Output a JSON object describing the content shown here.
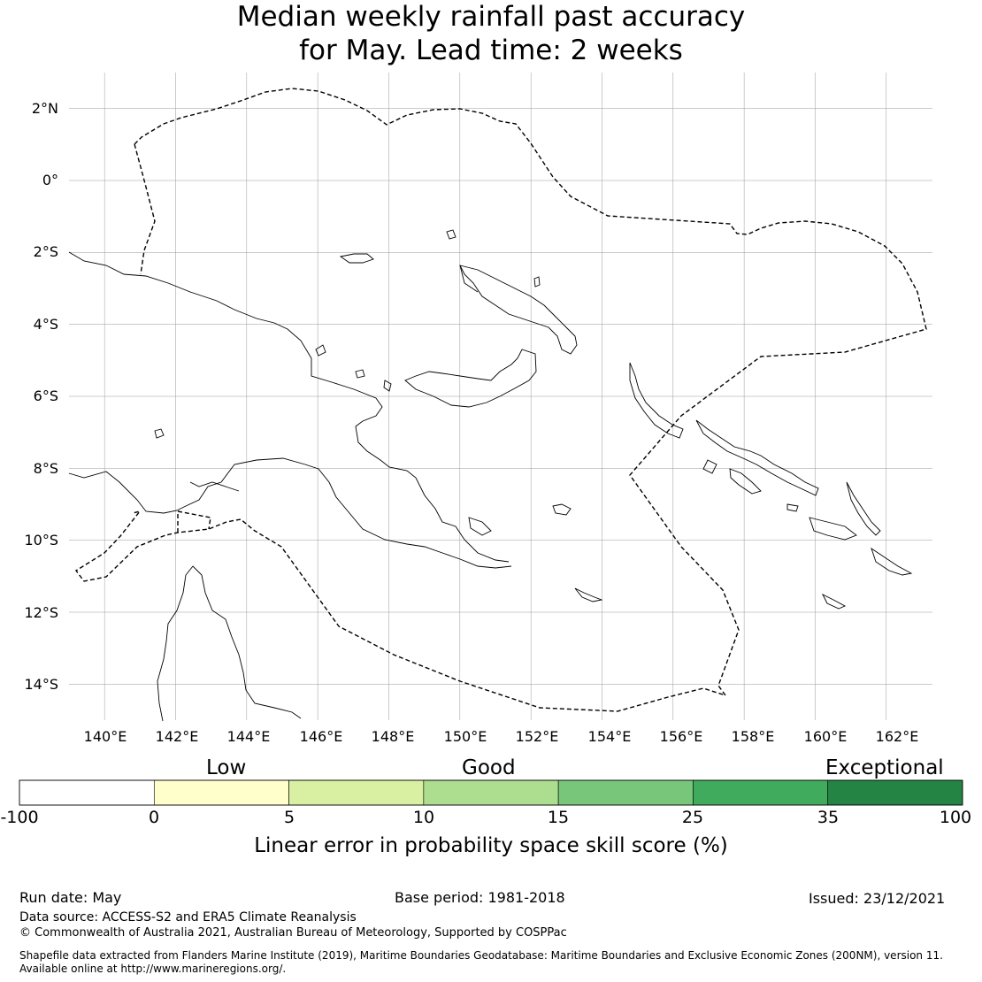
{
  "title": {
    "line1": "Median weekly rainfall past accuracy",
    "line2": "for May. Lead time: 2 weeks"
  },
  "map": {
    "lat_labels": [
      "2°N",
      "0°",
      "2°S",
      "4°S",
      "6°S",
      "8°S",
      "10°S",
      "12°S",
      "14°S"
    ],
    "lon_labels": [
      "140°E",
      "142°E",
      "144°E",
      "146°E",
      "148°E",
      "150°E",
      "152°E",
      "154°E",
      "156°E",
      "158°E",
      "160°E",
      "162°E"
    ],
    "extent": {
      "lon_min": 139,
      "lon_max": 163.3,
      "lat_min": -15,
      "lat_max": 3
    },
    "gridlines": true,
    "eez_boundary_style": "dashed",
    "coastline_color": "#000000"
  },
  "legend": {
    "categories": [
      "Low",
      "Good",
      "Exceptional"
    ],
    "ticks": [
      "-100",
      "0",
      "5",
      "10",
      "15",
      "25",
      "35",
      "100"
    ],
    "colors": [
      "#ffffff",
      "#ffffcc",
      "#d9f0a3",
      "#addd8e",
      "#78c679",
      "#41ab5d",
      "#238443"
    ],
    "title": "Linear error in probability space skill score (%)"
  },
  "footer": {
    "run_date": "Run date: May",
    "base_period": "Base period: 1981-2018",
    "issued": "Issued: 23/12/2021",
    "data_source": "Data source: ACCESS-S2 and ERA5 Climate Reanalysis",
    "copyright": "© Commonwealth of Australia 2021, Australian Bureau of Meteorology, Supported by COSPPac",
    "shapefile_line1": "Shapefile data extracted from Flanders Marine Institute (2019), Maritime Boundaries Geodatabase: Maritime Boundaries and Exclusive Economic Zones (200NM), version 11.",
    "shapefile_line2": "Available online at http://www.marineregions.org/."
  }
}
